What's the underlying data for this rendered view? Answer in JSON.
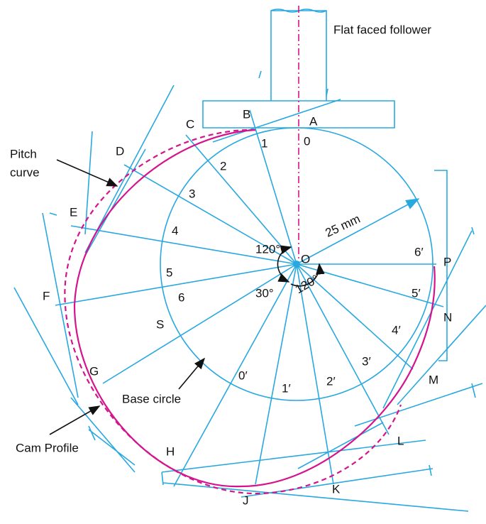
{
  "follower_label": "Flat faced follower",
  "pitch_curve_label": [
    "Pitch",
    "curve"
  ],
  "cam_profile_label": "Cam Profile",
  "base_circle_label": "Base circle",
  "radius_label": "25 mm",
  "angles": [
    "120°",
    "30°",
    "120°"
  ],
  "center_label": "O",
  "points": [
    "A",
    "B",
    "C",
    "D",
    "E",
    "F",
    "G",
    "H",
    "J",
    "K",
    "L",
    "M",
    "N",
    "P",
    "S"
  ],
  "rise_divisions": [
    "0",
    "1",
    "2",
    "3",
    "4",
    "5",
    "6"
  ],
  "return_divisions": [
    "0′",
    "1′",
    "2′",
    "3′",
    "4′",
    "5′",
    "6′"
  ]
}
